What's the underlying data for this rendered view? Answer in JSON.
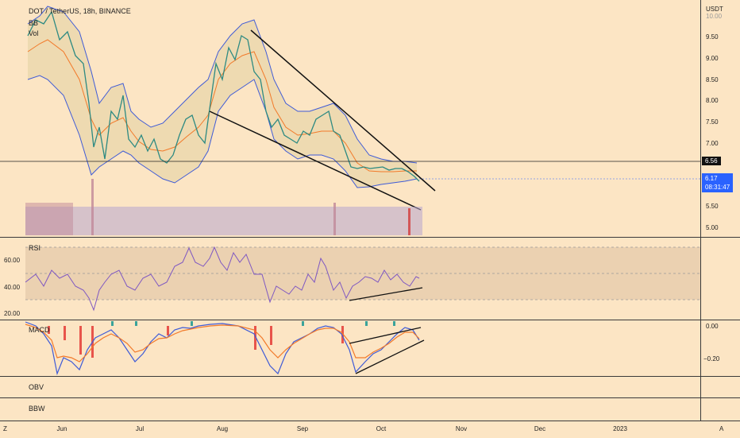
{
  "header": {
    "symbol_line": "DOT / TetherUS, 18h, BINANCE",
    "indicator_1": "BB",
    "indicator_2": "Vol"
  },
  "price_axis": {
    "currency": "USDT",
    "ticks": [
      "10.00",
      "9.50",
      "9.00",
      "8.50",
      "8.00",
      "7.50",
      "7.00",
      "6.50",
      "6.00",
      "5.50",
      "5.00"
    ],
    "level_label": "6.56",
    "last_price": "6.17",
    "countdown": "08:31:47"
  },
  "rsi_panel": {
    "label": "RSI",
    "ticks": [
      "60.00",
      "40.00",
      "20.00"
    ]
  },
  "macd_panel": {
    "label": "MACD",
    "ticks": [
      "0.00",
      "−0.20"
    ]
  },
  "obv_panel": {
    "label": "OBV"
  },
  "bbw_panel": {
    "label": "BBW"
  },
  "time_axis": {
    "left_button": "Z",
    "right_button": "A",
    "months": [
      "Jun",
      "Jul",
      "Aug",
      "Sep",
      "Oct",
      "Nov",
      "Dec",
      "2023"
    ]
  },
  "colors": {
    "background": "#fce5c4",
    "bb_band": "#3f5bd7",
    "bb_basis": "#f27a2a",
    "candle_up": "#3aa39a",
    "candle_down": "#e8544b",
    "rsi_line": "#7e57c2",
    "last_price_badge": "#2a62ff",
    "level_badge": "#111111"
  }
}
